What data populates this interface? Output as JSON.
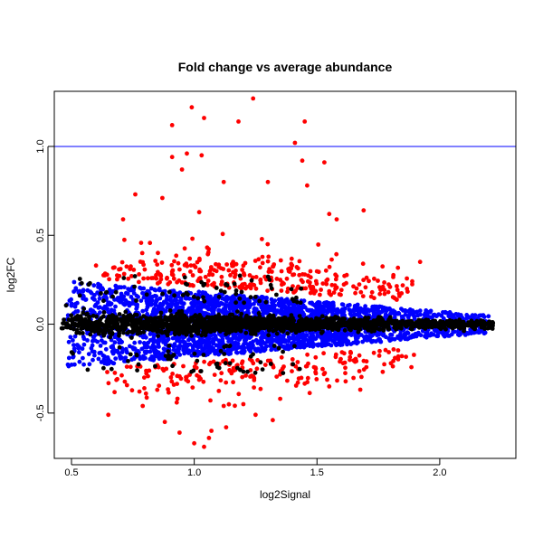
{
  "chart_data": {
    "type": "scatter",
    "title": "Fold change vs average abundance",
    "xlabel": "log2Signal",
    "ylabel": "log2FC",
    "xlim": [
      0.43,
      2.31
    ],
    "ylim": [
      -0.755,
      1.31
    ],
    "x_ticks": [
      0.5,
      1.0,
      1.5,
      2.0
    ],
    "x_tick_labels": [
      "0.5",
      "1.0",
      "1.5",
      "2.0"
    ],
    "y_ticks": [
      -0.5,
      0.0,
      0.5,
      1.0
    ],
    "y_tick_labels": [
      "-0.5",
      "0.0",
      "0.5",
      "1.0"
    ],
    "grid": false,
    "reference_line": {
      "axis": "y",
      "value": 1.0,
      "color": "#0000ff"
    },
    "series": [
      {
        "color": "#000000",
        "description": "dense core band near zero fold change",
        "x_range": [
          0.46,
          2.22
        ],
        "band_sd": [
          0.03,
          0.012
        ],
        "n": 1800
      },
      {
        "color": "#0000ff",
        "description": "moderate fold change band",
        "x_range": [
          0.48,
          2.2
        ],
        "band_abs": [
          [
            0.1,
            0.24
          ],
          [
            0.02,
            0.05
          ]
        ],
        "n": 2600
      },
      {
        "color": "#ff0000",
        "description": "larger fold change points",
        "x_range": [
          0.62,
          1.9
        ],
        "n": 520,
        "outliers": [
          [
            0.91,
            1.12
          ],
          [
            0.99,
            1.22
          ],
          [
            1.04,
            1.16
          ],
          [
            1.18,
            1.14
          ],
          [
            1.24,
            1.27
          ],
          [
            1.45,
            1.14
          ],
          [
            1.41,
            1.02
          ],
          [
            1.44,
            0.92
          ],
          [
            1.53,
            0.91
          ],
          [
            1.46,
            0.78
          ],
          [
            0.76,
            0.73
          ],
          [
            0.91,
            0.94
          ],
          [
            0.97,
            0.96
          ],
          [
            1.03,
            0.95
          ],
          [
            0.95,
            0.87
          ],
          [
            1.12,
            0.8
          ],
          [
            1.3,
            0.8
          ],
          [
            1.58,
            0.59
          ],
          [
            1.55,
            0.62
          ],
          [
            1.69,
            0.64
          ],
          [
            0.71,
            0.59
          ],
          [
            0.87,
            0.71
          ],
          [
            1.02,
            0.63
          ],
          [
            0.6,
            0.33
          ],
          [
            1.92,
            0.35
          ],
          [
            0.65,
            -0.51
          ],
          [
            0.94,
            -0.61
          ],
          [
            1.0,
            -0.67
          ],
          [
            1.04,
            -0.69
          ],
          [
            1.06,
            -0.64
          ],
          [
            0.88,
            -0.55
          ],
          [
            1.07,
            -0.6
          ],
          [
            1.13,
            -0.58
          ],
          [
            1.25,
            -0.51
          ],
          [
            1.32,
            -0.54
          ],
          [
            0.79,
            -0.46
          ],
          [
            1.12,
            -0.46
          ],
          [
            1.2,
            -0.45
          ],
          [
            1.35,
            -0.42
          ],
          [
            1.55,
            -0.35
          ]
        ]
      }
    ]
  }
}
